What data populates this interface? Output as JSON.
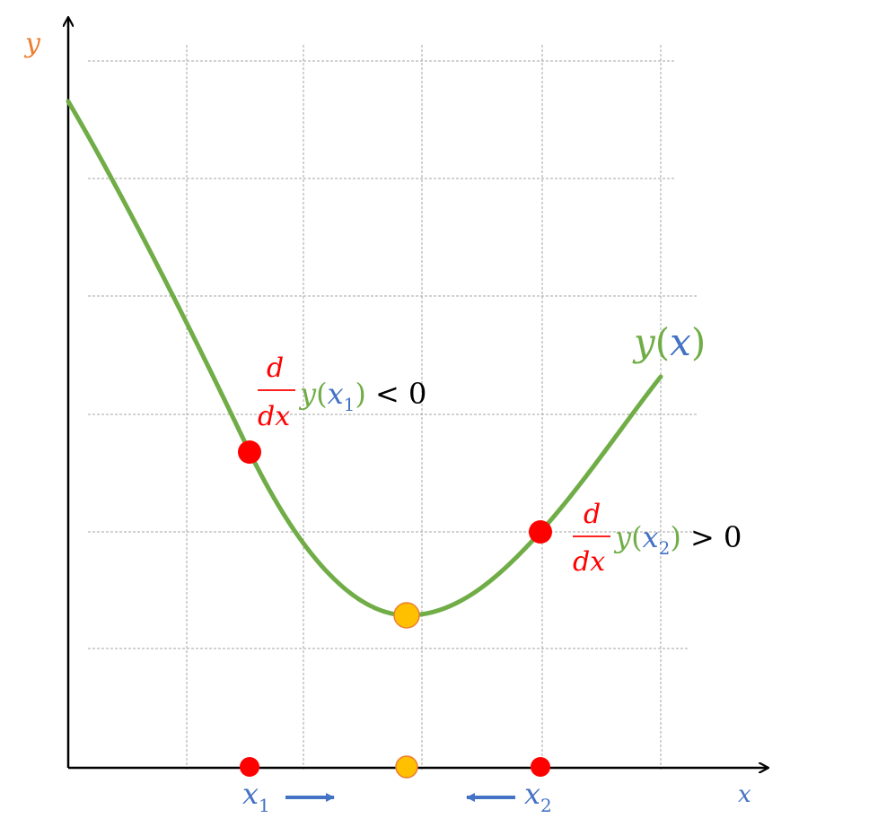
{
  "axes": {
    "x_label": "x",
    "y_label": "y"
  },
  "curve": {
    "label_y": "y",
    "label_open": "(",
    "label_x": "x",
    "label_close": ")"
  },
  "annotation_left": {
    "num": "d",
    "den": "dx",
    "func": "y",
    "open": "(",
    "var": "x",
    "sub": "1",
    "close": ")",
    "rel": " < 0"
  },
  "annotation_right": {
    "num": "d",
    "den": "dx",
    "func": "y",
    "open": "(",
    "var": "x",
    "sub": "2",
    "close": ")",
    "rel": " > 0"
  },
  "axis_points": {
    "x1": "x",
    "x1_sub": "1",
    "x2": "x",
    "x2_sub": "2"
  },
  "colors": {
    "curve": "#70ad47",
    "point": "#ff0000",
    "minimum": "#ffc000",
    "minimum_stroke": "#ed7d31",
    "y_label": "#ed7d31",
    "x_label": "#4472c4",
    "arrow": "#4472c4",
    "grid": "#a6a6a6",
    "axis": "#000000"
  }
}
